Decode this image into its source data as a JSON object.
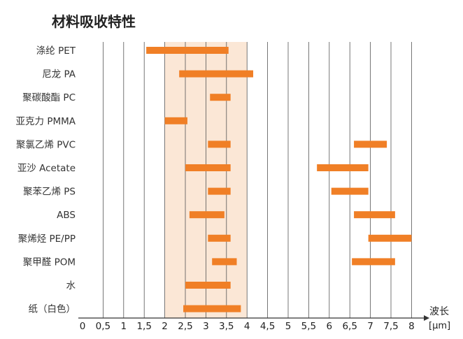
{
  "chart_data": {
    "type": "bar",
    "orientation": "horizontal-range",
    "title": "材料吸收特性",
    "xlabel": "波长",
    "xunit": "[µm]",
    "xlim": [
      0,
      8
    ],
    "xticks": [
      "0",
      "0,5",
      "1",
      "1,5",
      "2",
      "2,5",
      "3",
      "3,5",
      "4",
      "4,5",
      "5",
      "5,5",
      "6",
      "6,5",
      "7",
      "7,5",
      "8"
    ],
    "highlight_band": [
      2,
      4
    ],
    "grid": "vertical",
    "bar_color": "#f07f26",
    "band_color": "#fbe7d6",
    "categories": [
      "涤纶 PET",
      "尼龙 PA",
      "聚碳酸酯 PC",
      "亚克力 PMMA",
      "聚氯乙烯 PVC",
      "亚沙 Acetate",
      "聚苯乙烯 PS",
      "ABS",
      "聚烯烃 PE/PP",
      "聚甲醛 POM",
      "水",
      "纸（白色）"
    ],
    "ranges": [
      [
        [
          1.55,
          3.55
        ]
      ],
      [
        [
          2.35,
          4.15
        ]
      ],
      [
        [
          3.1,
          3.6
        ]
      ],
      [
        [
          2.0,
          2.55
        ]
      ],
      [
        [
          3.05,
          3.6
        ],
        [
          6.6,
          7.4
        ]
      ],
      [
        [
          2.5,
          3.6
        ],
        [
          5.7,
          6.95
        ]
      ],
      [
        [
          3.05,
          3.6
        ],
        [
          6.05,
          6.95
        ]
      ],
      [
        [
          2.6,
          3.45
        ],
        [
          6.6,
          7.6
        ]
      ],
      [
        [
          3.05,
          3.6
        ],
        [
          6.95,
          8.0
        ]
      ],
      [
        [
          3.15,
          3.75
        ],
        [
          6.55,
          7.6
        ]
      ],
      [
        [
          2.5,
          3.6
        ]
      ],
      [
        [
          2.45,
          3.85
        ]
      ]
    ]
  }
}
